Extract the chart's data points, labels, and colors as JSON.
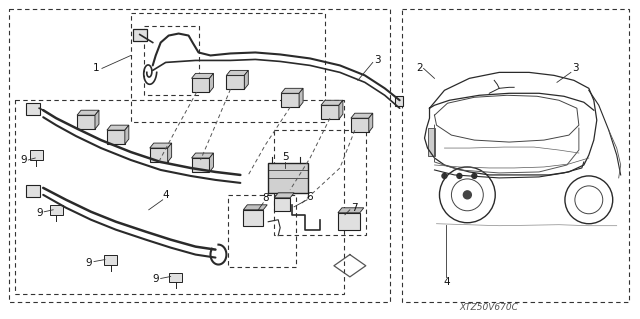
{
  "bg_color": "#ffffff",
  "fig_width": 6.4,
  "fig_height": 3.19,
  "dpi": 100,
  "watermark": "XTZ50V670C",
  "line_color": "#2a2a2a",
  "dash_color": "#444444",
  "component_fill": "#e0e0e0",
  "component_edge": "#222222"
}
